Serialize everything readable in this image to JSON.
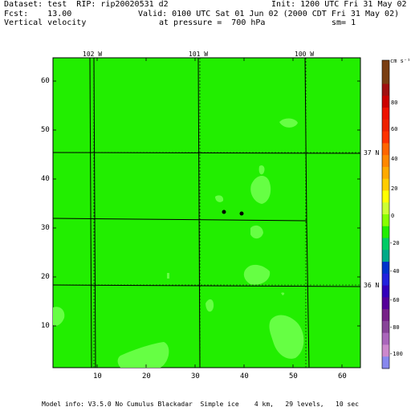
{
  "header": {
    "dataset": "Dataset: test  RIP: rip20020531 d2",
    "init": "Init: 1200 UTC Fri 31 May 02",
    "fcst": "Fcst:    13.00",
    "valid": "Valid: 0100 UTC Sat 01 Jun 02 (2000 CDT Fri 31 May 02)",
    "field": "Vertical velocity",
    "pressure": "at pressure =  700 hPa",
    "smooth": "sm= 1"
  },
  "footer": {
    "model_info": "Model info: V3.5.0 No Cumulus Blackadar  Simple ice    4 km,   29 levels,   10 sec"
  },
  "map": {
    "longitude_labels": [
      "102 W",
      "101 W",
      "100 W"
    ],
    "latitude_labels": [
      "37 N",
      "36 N"
    ],
    "x_ticks": [
      "10",
      "20",
      "30",
      "40",
      "50",
      "60"
    ],
    "y_ticks": [
      "60",
      "50",
      "40",
      "30",
      "20",
      "10"
    ],
    "background_color": "#22ee00",
    "highlight_color": "#66ff44"
  },
  "colorbar": {
    "unit": "cm s⁻¹",
    "labels": [
      "80",
      "60",
      "40",
      "20",
      "0",
      "-20",
      "-40",
      "-60",
      "-80",
      "-100"
    ],
    "colors": [
      "#7a3e12",
      "#7a3e12",
      "#a01010",
      "#cc0000",
      "#ee1100",
      "#ee2200",
      "#ff3300",
      "#ff6600",
      "#ff8800",
      "#ffaa00",
      "#ffcc00",
      "#ffff00",
      "#ccff33",
      "#88ff00",
      "#22ee00",
      "#00cc66",
      "#00aa88",
      "#0033cc",
      "#2222dd",
      "#3300bb",
      "#550099",
      "#772288",
      "#884499",
      "#aa66bb",
      "#cc88cc",
      "#8888ee"
    ]
  }
}
